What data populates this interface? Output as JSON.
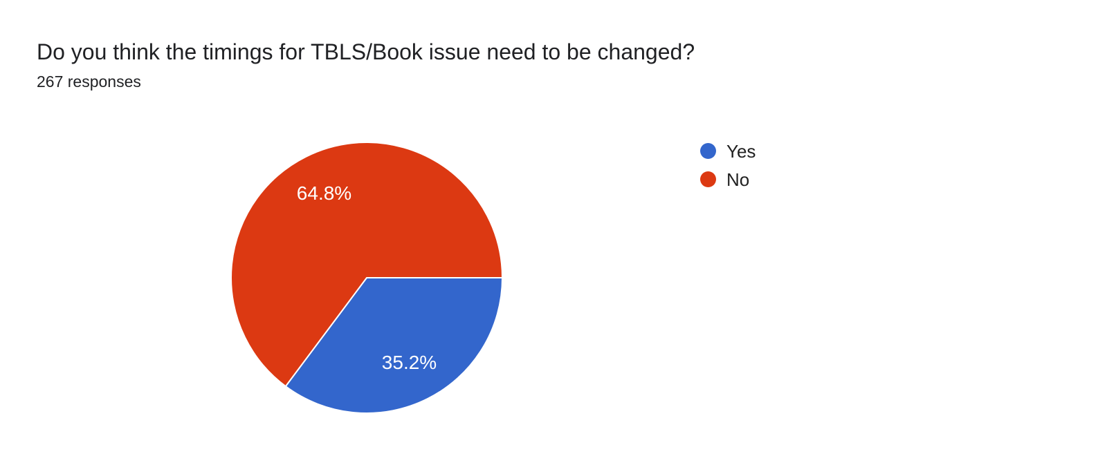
{
  "header": {
    "title": "Do you think the timings for TBLS/Book issue need to be changed?",
    "subtitle": "267 responses"
  },
  "chart_data": {
    "type": "pie",
    "title": "Do you think the timings for TBLS/Book issue need to be changed?",
    "subtitle": "267 responses",
    "total_responses": 267,
    "categories": [
      "Yes",
      "No"
    ],
    "values": [
      35.2,
      64.8
    ],
    "slice_labels": [
      "35.2%",
      "64.8%"
    ],
    "colors": [
      "#3366cc",
      "#dc3912"
    ],
    "slice_label_color": "#ffffff",
    "slice_border_color": "#ffffff",
    "legend_position": "right",
    "start_angle_clockwise_from_east_deg": 0
  }
}
